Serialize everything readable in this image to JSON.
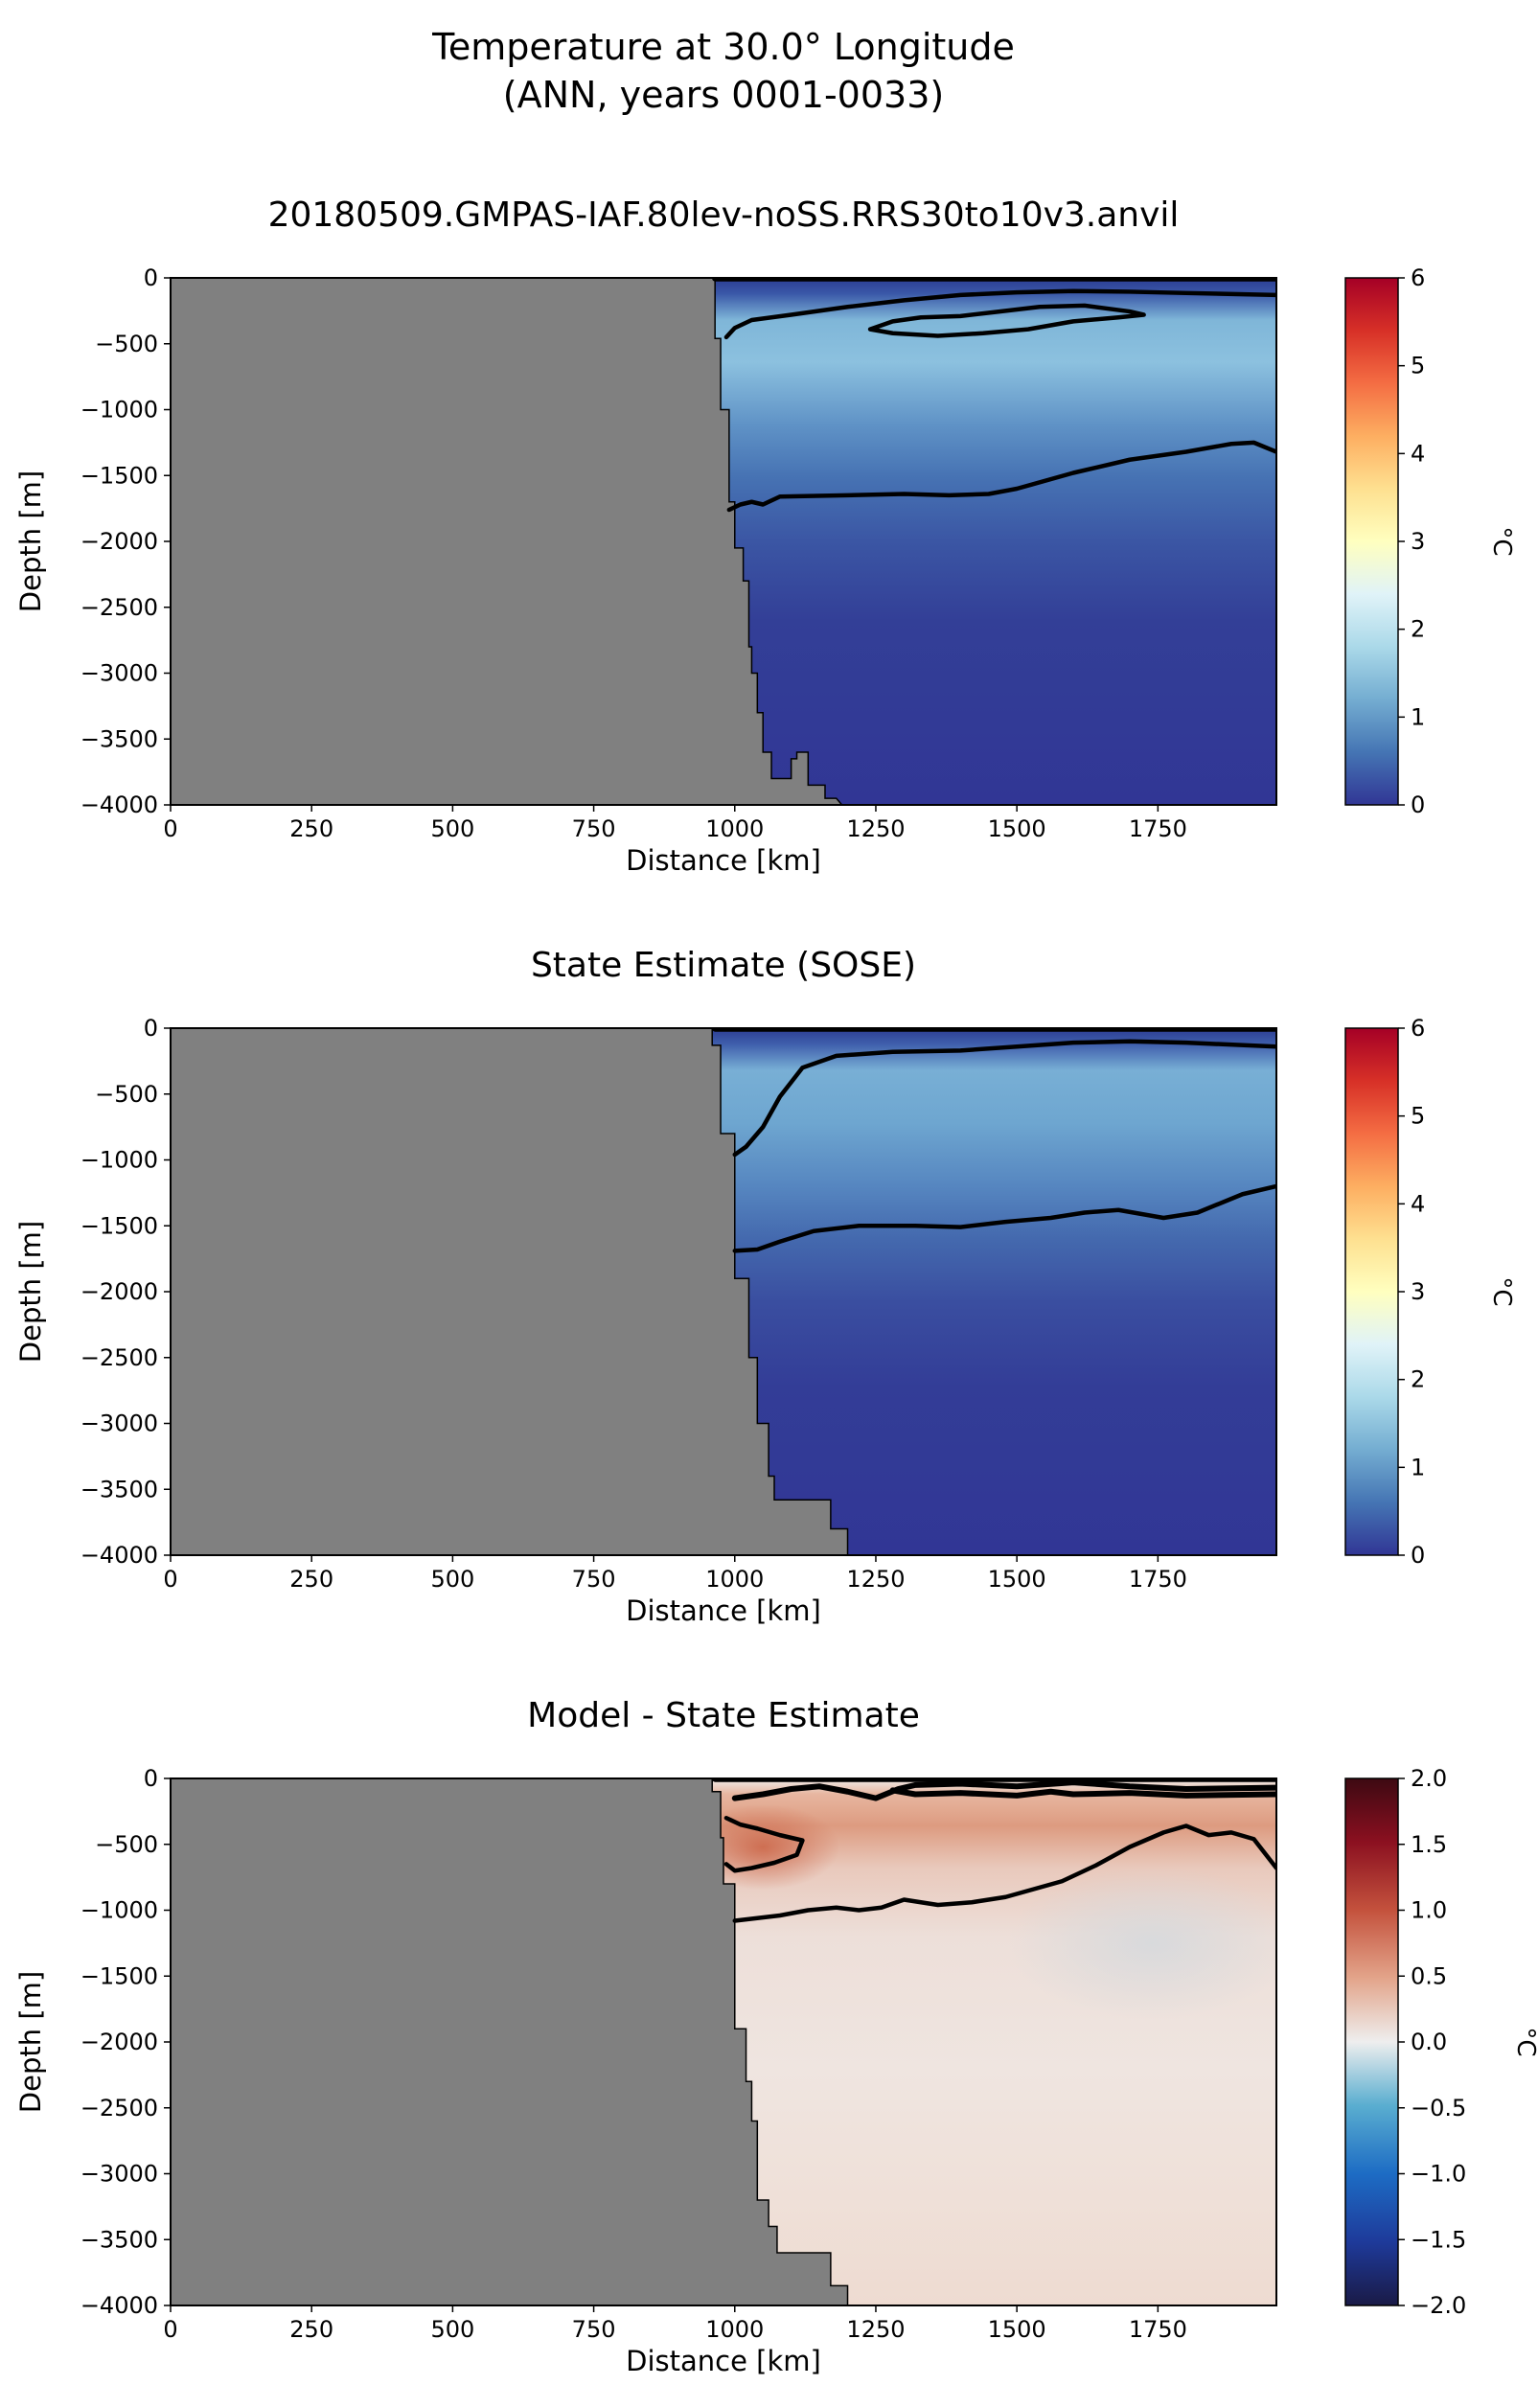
{
  "figure": {
    "title_line1": "Temperature at 30.0° Longitude",
    "title_line2": "(ANN, years 0001-0033)"
  },
  "chart_data": [
    {
      "type": "heatmap",
      "title": "20180509.GMPAS-IAF.80lev-noSS.RRS30to10v3.anvil",
      "xlabel": "Distance [km]",
      "ylabel": "Depth [m]",
      "xlim": [
        0,
        1960
      ],
      "ylim": [
        -4000,
        0
      ],
      "x_ticks": [
        0,
        250,
        500,
        750,
        1000,
        1250,
        1500,
        1750
      ],
      "y_ticks": [
        0,
        -500,
        -1000,
        -1500,
        -2000,
        -2500,
        -3000,
        -3500,
        -4000
      ],
      "colorbar": {
        "label": "°C",
        "min": 0,
        "max": 6,
        "ticks": [
          0,
          1,
          2,
          3,
          4,
          5,
          6
        ],
        "colormap": "RdYlBu_r"
      },
      "land_color": "#808080",
      "bathymetry": [
        [
          965,
          0
        ],
        [
          965,
          -460
        ],
        [
          975,
          -460
        ],
        [
          975,
          -1000
        ],
        [
          990,
          -1000
        ],
        [
          990,
          -1700
        ],
        [
          1000,
          -1700
        ],
        [
          1000,
          -2050
        ],
        [
          1015,
          -2050
        ],
        [
          1015,
          -2300
        ],
        [
          1025,
          -2300
        ],
        [
          1025,
          -2800
        ],
        [
          1030,
          -2800
        ],
        [
          1030,
          -3000
        ],
        [
          1040,
          -3000
        ],
        [
          1040,
          -3300
        ],
        [
          1050,
          -3300
        ],
        [
          1050,
          -3600
        ],
        [
          1065,
          -3600
        ],
        [
          1065,
          -3800
        ],
        [
          1100,
          -3800
        ],
        [
          1100,
          -3650
        ],
        [
          1110,
          -3650
        ],
        [
          1110,
          -3600
        ],
        [
          1130,
          -3600
        ],
        [
          1130,
          -3850
        ],
        [
          1160,
          -3850
        ],
        [
          1160,
          -3950
        ],
        [
          1180,
          -3950
        ],
        [
          1190,
          -4000
        ]
      ],
      "contours": {
        "levels_degC": [
          0.5,
          1.0
        ],
        "upper_0p5": [
          [
            985,
            -450
          ],
          [
            1000,
            -380
          ],
          [
            1030,
            -320
          ],
          [
            1100,
            -280
          ],
          [
            1200,
            -220
          ],
          [
            1300,
            -170
          ],
          [
            1400,
            -130
          ],
          [
            1500,
            -110
          ],
          [
            1600,
            -100
          ],
          [
            1700,
            -105
          ],
          [
            1800,
            -115
          ],
          [
            1960,
            -130
          ]
        ],
        "upper_0p5_top": [
          [
            965,
            -5
          ],
          [
            1960,
            -5
          ]
        ],
        "closed_1p0": [
          [
            1240,
            -390
          ],
          [
            1280,
            -330
          ],
          [
            1330,
            -300
          ],
          [
            1400,
            -290
          ],
          [
            1460,
            -260
          ],
          [
            1540,
            -220
          ],
          [
            1620,
            -210
          ],
          [
            1700,
            -255
          ],
          [
            1725,
            -280
          ],
          [
            1680,
            -300
          ],
          [
            1600,
            -330
          ],
          [
            1520,
            -390
          ],
          [
            1440,
            -420
          ],
          [
            1360,
            -440
          ],
          [
            1280,
            -420
          ],
          [
            1240,
            -390
          ]
        ],
        "deep_0p5": [
          [
            990,
            -1760
          ],
          [
            1010,
            -1720
          ],
          [
            1030,
            -1700
          ],
          [
            1050,
            -1720
          ],
          [
            1080,
            -1660
          ],
          [
            1200,
            -1650
          ],
          [
            1300,
            -1640
          ],
          [
            1380,
            -1650
          ],
          [
            1450,
            -1640
          ],
          [
            1500,
            -1600
          ],
          [
            1600,
            -1480
          ],
          [
            1700,
            -1380
          ],
          [
            1800,
            -1320
          ],
          [
            1880,
            -1260
          ],
          [
            1920,
            -1250
          ],
          [
            1960,
            -1320
          ]
        ]
      }
    },
    {
      "type": "heatmap",
      "title": "State Estimate (SOSE)",
      "xlabel": "Distance [km]",
      "ylabel": "Depth [m]",
      "xlim": [
        0,
        1960
      ],
      "ylim": [
        -4000,
        0
      ],
      "x_ticks": [
        0,
        250,
        500,
        750,
        1000,
        1250,
        1500,
        1750
      ],
      "y_ticks": [
        0,
        -500,
        -1000,
        -1500,
        -2000,
        -2500,
        -3000,
        -3500,
        -4000
      ],
      "colorbar": {
        "label": "°C",
        "min": 0,
        "max": 6,
        "ticks": [
          0,
          1,
          2,
          3,
          4,
          5,
          6
        ],
        "colormap": "RdYlBu_r"
      },
      "land_color": "#808080",
      "bathymetry": [
        [
          960,
          0
        ],
        [
          960,
          -130
        ],
        [
          975,
          -130
        ],
        [
          975,
          -800
        ],
        [
          1000,
          -800
        ],
        [
          1000,
          -1900
        ],
        [
          1025,
          -1900
        ],
        [
          1025,
          -2500
        ],
        [
          1040,
          -2500
        ],
        [
          1040,
          -3000
        ],
        [
          1060,
          -3000
        ],
        [
          1060,
          -3400
        ],
        [
          1070,
          -3400
        ],
        [
          1070,
          -3580
        ],
        [
          1170,
          -3580
        ],
        [
          1170,
          -3800
        ],
        [
          1200,
          -3800
        ],
        [
          1200,
          -4000
        ]
      ],
      "contours": {
        "levels_degC": [
          0.5
        ],
        "upper_0p5": [
          [
            1000,
            -960
          ],
          [
            1020,
            -900
          ],
          [
            1050,
            -750
          ],
          [
            1080,
            -520
          ],
          [
            1120,
            -300
          ],
          [
            1180,
            -210
          ],
          [
            1280,
            -180
          ],
          [
            1400,
            -170
          ],
          [
            1500,
            -140
          ],
          [
            1600,
            -110
          ],
          [
            1700,
            -100
          ],
          [
            1800,
            -110
          ],
          [
            1960,
            -140
          ]
        ],
        "upper_0p5_top": [
          [
            965,
            -5
          ],
          [
            1960,
            -5
          ]
        ],
        "deep_0p5": [
          [
            1000,
            -1690
          ],
          [
            1040,
            -1680
          ],
          [
            1080,
            -1620
          ],
          [
            1140,
            -1540
          ],
          [
            1220,
            -1500
          ],
          [
            1320,
            -1500
          ],
          [
            1400,
            -1510
          ],
          [
            1480,
            -1470
          ],
          [
            1560,
            -1440
          ],
          [
            1620,
            -1400
          ],
          [
            1680,
            -1380
          ],
          [
            1760,
            -1440
          ],
          [
            1820,
            -1400
          ],
          [
            1900,
            -1260
          ],
          [
            1960,
            -1200
          ]
        ]
      }
    },
    {
      "type": "heatmap",
      "title": "Model - State Estimate",
      "xlabel": "Distance [km]",
      "ylabel": "Depth [m]",
      "xlim": [
        0,
        1960
      ],
      "ylim": [
        -4000,
        0
      ],
      "x_ticks": [
        0,
        250,
        500,
        750,
        1000,
        1250,
        1500,
        1750
      ],
      "y_ticks": [
        0,
        -500,
        -1000,
        -1500,
        -2000,
        -2500,
        -3000,
        -3500,
        -4000
      ],
      "colorbar": {
        "label": "°C",
        "min": -2.0,
        "max": 2.0,
        "ticks": [
          2.0,
          1.5,
          1.0,
          0.5,
          0.0,
          -0.5,
          -1.0,
          -1.5,
          -2.0
        ],
        "tick_labels": [
          "2.0",
          "1.5",
          "1.0",
          "0.5",
          "0.0",
          "−0.5",
          "−1.0",
          "−1.5",
          "−2.0"
        ],
        "colormap": "RdBu_r"
      },
      "land_color": "#808080",
      "bathymetry": [
        [
          960,
          0
        ],
        [
          960,
          -100
        ],
        [
          975,
          -100
        ],
        [
          975,
          -450
        ],
        [
          980,
          -450
        ],
        [
          980,
          -800
        ],
        [
          1000,
          -800
        ],
        [
          1000,
          -1900
        ],
        [
          1020,
          -1900
        ],
        [
          1020,
          -2300
        ],
        [
          1030,
          -2300
        ],
        [
          1030,
          -2600
        ],
        [
          1040,
          -2600
        ],
        [
          1040,
          -3200
        ],
        [
          1060,
          -3200
        ],
        [
          1060,
          -3400
        ],
        [
          1075,
          -3400
        ],
        [
          1075,
          -3600
        ],
        [
          1170,
          -3600
        ],
        [
          1170,
          -3850
        ],
        [
          1200,
          -3850
        ],
        [
          1200,
          -4000
        ]
      ],
      "contours": {
        "levels_degC": [
          0.5
        ],
        "band_top_a": [
          [
            1000,
            -150
          ],
          [
            1050,
            -120
          ],
          [
            1100,
            -80
          ],
          [
            1150,
            -60
          ],
          [
            1200,
            -100
          ],
          [
            1250,
            -150
          ],
          [
            1290,
            -80
          ],
          [
            1320,
            -50
          ],
          [
            1400,
            -40
          ],
          [
            1500,
            -60
          ],
          [
            1600,
            -30
          ],
          [
            1700,
            -60
          ],
          [
            1800,
            -80
          ],
          [
            1960,
            -70
          ]
        ],
        "band_top_b": [
          [
            1280,
            -90
          ],
          [
            1320,
            -120
          ],
          [
            1400,
            -110
          ],
          [
            1500,
            -130
          ],
          [
            1560,
            -100
          ],
          [
            1600,
            -120
          ],
          [
            1700,
            -110
          ],
          [
            1800,
            -130
          ],
          [
            1960,
            -120
          ]
        ],
        "band_top_c": [
          [
            965,
            -5
          ],
          [
            1960,
            -5
          ]
        ],
        "lens": [
          [
            985,
            -300
          ],
          [
            1010,
            -350
          ],
          [
            1040,
            -380
          ],
          [
            1080,
            -430
          ],
          [
            1120,
            -470
          ],
          [
            1110,
            -580
          ],
          [
            1070,
            -640
          ],
          [
            1030,
            -680
          ],
          [
            1000,
            -700
          ],
          [
            985,
            -650
          ]
        ],
        "lower_0p5": [
          [
            1000,
            -1080
          ],
          [
            1040,
            -1060
          ],
          [
            1080,
            -1040
          ],
          [
            1130,
            -1000
          ],
          [
            1180,
            -980
          ],
          [
            1220,
            -1000
          ],
          [
            1260,
            -980
          ],
          [
            1300,
            -920
          ],
          [
            1360,
            -960
          ],
          [
            1420,
            -940
          ],
          [
            1480,
            -900
          ],
          [
            1530,
            -840
          ],
          [
            1580,
            -780
          ],
          [
            1640,
            -660
          ],
          [
            1700,
            -520
          ],
          [
            1760,
            -410
          ],
          [
            1800,
            -360
          ],
          [
            1840,
            -430
          ],
          [
            1880,
            -410
          ],
          [
            1920,
            -460
          ],
          [
            1960,
            -680
          ]
        ]
      }
    }
  ]
}
